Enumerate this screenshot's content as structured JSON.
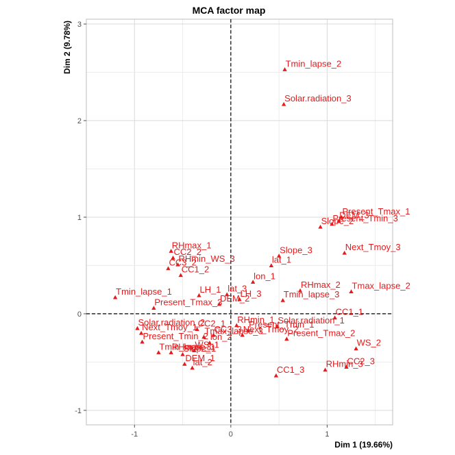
{
  "chart_data": {
    "type": "scatter",
    "title": "MCA factor map",
    "xlabel": "Dim 1 (19.66%)",
    "ylabel": "Dim 2 (9.78%)",
    "xlim": [
      -1.5,
      1.68
    ],
    "ylim": [
      -1.15,
      3.05
    ],
    "x_ticks": [
      -1,
      0,
      1
    ],
    "y_ticks": [
      -1,
      0,
      1,
      2,
      3
    ],
    "grid": true,
    "reference_lines": {
      "x": 0,
      "y": 0,
      "style": "dashed"
    },
    "color": "#e41a1c",
    "marker": "triangle",
    "points": [
      {
        "label": "Tmin_lapse_2",
        "x": 0.56,
        "y": 2.53
      },
      {
        "label": "Solar.radiation_3",
        "x": 0.55,
        "y": 2.17
      },
      {
        "label": "Present_Tmax_1",
        "x": 1.15,
        "y": 1.0
      },
      {
        "label": "DEM_3",
        "x": 1.12,
        "y": 0.96
      },
      {
        "label": "Present_Tmin_3",
        "x": 1.05,
        "y": 0.93
      },
      {
        "label": "Slope_2",
        "x": 0.93,
        "y": 0.9
      },
      {
        "label": "Next_Tmoy_3",
        "x": 1.18,
        "y": 0.63
      },
      {
        "label": "Tmax_lapse_2",
        "x": 1.25,
        "y": 0.23
      },
      {
        "label": "RHmax_2",
        "x": 0.72,
        "y": 0.24
      },
      {
        "label": "Tmin_lapse_3",
        "x": 0.54,
        "y": 0.14
      },
      {
        "label": "Slope_3",
        "x": 0.5,
        "y": 0.6
      },
      {
        "label": "lat_1",
        "x": 0.42,
        "y": 0.5
      },
      {
        "label": "lon_1",
        "x": 0.23,
        "y": 0.33
      },
      {
        "label": "LH_3",
        "x": 0.09,
        "y": 0.15
      },
      {
        "label": "lat_3",
        "x": -0.04,
        "y": 0.2
      },
      {
        "label": "DEM_2",
        "x": -0.12,
        "y": 0.1
      },
      {
        "label": "LH_1",
        "x": -0.33,
        "y": 0.19
      },
      {
        "label": "RHmax_1",
        "x": -0.62,
        "y": 0.65
      },
      {
        "label": "CC2_2",
        "x": -0.6,
        "y": 0.58
      },
      {
        "label": "RHmin_WS_3",
        "x": -0.55,
        "y": 0.51
      },
      {
        "label": "CC3_2",
        "x": -0.65,
        "y": 0.47
      },
      {
        "label": "CC1_2",
        "x": -0.52,
        "y": 0.4
      },
      {
        "label": "Tmin_lapse_1",
        "x": -1.2,
        "y": 0.17
      },
      {
        "label": "Present_Tmax_3",
        "x": -0.8,
        "y": 0.06
      },
      {
        "label": "Solar.radiation_2",
        "x": -0.97,
        "y": -0.15
      },
      {
        "label": "Next_Tmoy_1",
        "x": -0.93,
        "y": -0.2
      },
      {
        "label": "Present_Tmin_2",
        "x": -0.92,
        "y": -0.29
      },
      {
        "label": "Tmin_lapse_1",
        "x": -0.75,
        "y": -0.4
      },
      {
        "label": "CC2_1",
        "x": -0.35,
        "y": -0.16
      },
      {
        "label": "Tmax_lapse_3",
        "x": -0.28,
        "y": -0.24
      },
      {
        "label": "CC3_3",
        "x": -0.18,
        "y": -0.22
      },
      {
        "label": "RHmax_3",
        "x": -0.62,
        "y": -0.4
      },
      {
        "label": "Slope_1",
        "x": -0.5,
        "y": -0.42
      },
      {
        "label": "WS_1",
        "x": -0.38,
        "y": -0.38
      },
      {
        "label": "lon_2",
        "x": -0.22,
        "y": -0.3
      },
      {
        "label": "DEM_1",
        "x": -0.48,
        "y": -0.52
      },
      {
        "label": "lat_2",
        "x": -0.4,
        "y": -0.56
      },
      {
        "label": "RHmin_1",
        "x": 0.06,
        "y": -0.12
      },
      {
        "label": "Present_Tmin_1",
        "x": 0.18,
        "y": -0.17
      },
      {
        "label": "Next_Tmoy_2",
        "x": 0.12,
        "y": -0.22
      },
      {
        "label": "Solar.radiation_1",
        "x": 0.48,
        "y": -0.13
      },
      {
        "label": "Present_Tmax_2",
        "x": 0.58,
        "y": -0.26
      },
      {
        "label": "CC1_1",
        "x": 1.08,
        "y": -0.04
      },
      {
        "label": "WS_2",
        "x": 1.3,
        "y": -0.36
      },
      {
        "label": "CC2_3",
        "x": 1.2,
        "y": -0.55
      },
      {
        "label": "RHmin_3",
        "x": 0.98,
        "y": -0.58
      },
      {
        "label": "CC1_3",
        "x": 0.47,
        "y": -0.64
      }
    ]
  }
}
